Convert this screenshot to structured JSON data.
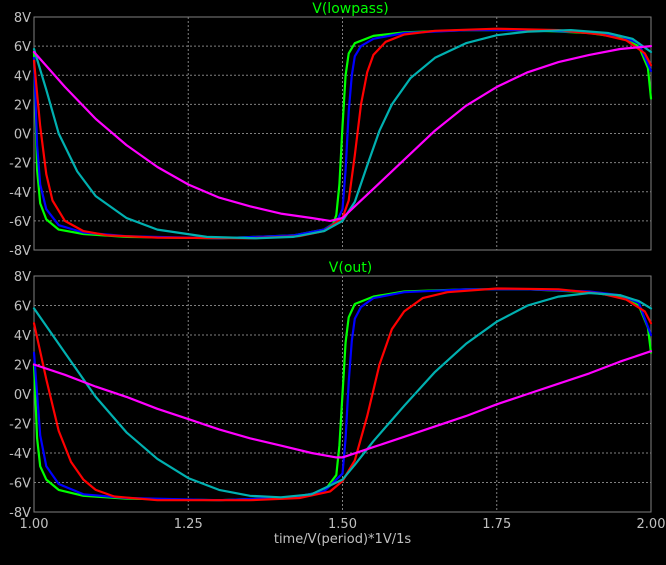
{
  "chart_data": [
    {
      "type": "line",
      "title": "V(lowpass)",
      "title_color": "#00ff00",
      "ylim": [
        -8,
        8
      ],
      "yticks": [
        {
          "value": 8,
          "label": "8V"
        },
        {
          "value": 6,
          "label": "6V"
        },
        {
          "value": 4,
          "label": "4V"
        },
        {
          "value": 2,
          "label": "2V"
        },
        {
          "value": 0,
          "label": "0V"
        },
        {
          "value": -2,
          "label": "-2V"
        },
        {
          "value": -4,
          "label": "-4V"
        },
        {
          "value": -6,
          "label": "-6V"
        },
        {
          "value": -8,
          "label": "-8V"
        }
      ],
      "xlim": [
        1.0,
        2.0
      ],
      "grid": true,
      "series": [
        {
          "color": "#00ff00",
          "points": [
            [
              1.0,
              5.6
            ],
            [
              1.005,
              -2.5
            ],
            [
              1.01,
              -4.8
            ],
            [
              1.02,
              -5.9
            ],
            [
              1.04,
              -6.6
            ],
            [
              1.08,
              -6.9
            ],
            [
              1.15,
              -7.1
            ],
            [
              1.3,
              -7.2
            ],
            [
              1.42,
              -7.0
            ],
            [
              1.47,
              -6.6
            ],
            [
              1.485,
              -6.2
            ],
            [
              1.49,
              -5.6
            ],
            [
              1.495,
              -3.5
            ],
            [
              1.5,
              0.5
            ],
            [
              1.505,
              4.0
            ],
            [
              1.51,
              5.5
            ],
            [
              1.52,
              6.2
            ],
            [
              1.55,
              6.7
            ],
            [
              1.6,
              6.95
            ],
            [
              1.7,
              7.1
            ],
            [
              1.8,
              7.1
            ],
            [
              1.9,
              6.9
            ],
            [
              1.95,
              6.6
            ],
            [
              1.98,
              6.0
            ],
            [
              1.995,
              4.5
            ],
            [
              2.0,
              2.4
            ]
          ]
        },
        {
          "color": "#0000ff",
          "points": [
            [
              1.0,
              5.2
            ],
            [
              1.005,
              -0.8
            ],
            [
              1.01,
              -3.5
            ],
            [
              1.02,
              -5.2
            ],
            [
              1.04,
              -6.3
            ],
            [
              1.08,
              -6.8
            ],
            [
              1.15,
              -7.05
            ],
            [
              1.3,
              -7.2
            ],
            [
              1.42,
              -7.0
            ],
            [
              1.47,
              -6.6
            ],
            [
              1.49,
              -6.1
            ],
            [
              1.5,
              -5.2
            ],
            [
              1.505,
              -2.5
            ],
            [
              1.51,
              1.5
            ],
            [
              1.515,
              4.0
            ],
            [
              1.52,
              5.3
            ],
            [
              1.53,
              6.0
            ],
            [
              1.55,
              6.5
            ],
            [
              1.6,
              6.9
            ],
            [
              1.7,
              7.1
            ],
            [
              1.8,
              7.1
            ],
            [
              1.9,
              6.95
            ],
            [
              1.95,
              6.7
            ],
            [
              1.98,
              6.2
            ],
            [
              2.0,
              4.3
            ]
          ]
        },
        {
          "color": "#ff0000",
          "points": [
            [
              1.0,
              5.0
            ],
            [
              1.01,
              0.5
            ],
            [
              1.02,
              -2.8
            ],
            [
              1.03,
              -4.6
            ],
            [
              1.05,
              -6.0
            ],
            [
              1.08,
              -6.7
            ],
            [
              1.12,
              -7.0
            ],
            [
              1.2,
              -7.15
            ],
            [
              1.35,
              -7.2
            ],
            [
              1.43,
              -7.05
            ],
            [
              1.47,
              -6.7
            ],
            [
              1.5,
              -5.8
            ],
            [
              1.51,
              -4.6
            ],
            [
              1.52,
              -1.5
            ],
            [
              1.53,
              2.0
            ],
            [
              1.54,
              4.2
            ],
            [
              1.55,
              5.4
            ],
            [
              1.57,
              6.3
            ],
            [
              1.6,
              6.8
            ],
            [
              1.65,
              7.05
            ],
            [
              1.75,
              7.2
            ],
            [
              1.85,
              7.1
            ],
            [
              1.92,
              6.8
            ],
            [
              1.96,
              6.4
            ],
            [
              1.99,
              5.5
            ],
            [
              2.0,
              4.7
            ]
          ]
        },
        {
          "color": "#00b0b0",
          "points": [
            [
              1.0,
              5.8
            ],
            [
              1.02,
              3.0
            ],
            [
              1.04,
              0.0
            ],
            [
              1.07,
              -2.6
            ],
            [
              1.1,
              -4.3
            ],
            [
              1.15,
              -5.8
            ],
            [
              1.2,
              -6.6
            ],
            [
              1.28,
              -7.1
            ],
            [
              1.36,
              -7.2
            ],
            [
              1.42,
              -7.1
            ],
            [
              1.47,
              -6.7
            ],
            [
              1.5,
              -6.0
            ],
            [
              1.52,
              -4.7
            ],
            [
              1.54,
              -2.2
            ],
            [
              1.56,
              0.2
            ],
            [
              1.58,
              2.0
            ],
            [
              1.61,
              3.8
            ],
            [
              1.65,
              5.2
            ],
            [
              1.7,
              6.2
            ],
            [
              1.75,
              6.75
            ],
            [
              1.8,
              7.0
            ],
            [
              1.87,
              7.1
            ],
            [
              1.93,
              6.9
            ],
            [
              1.97,
              6.5
            ],
            [
              2.0,
              5.6
            ]
          ]
        },
        {
          "color": "#ff00ff",
          "points": [
            [
              1.0,
              5.6
            ],
            [
              1.05,
              3.2
            ],
            [
              1.1,
              1.0
            ],
            [
              1.15,
              -0.8
            ],
            [
              1.2,
              -2.3
            ],
            [
              1.25,
              -3.5
            ],
            [
              1.3,
              -4.4
            ],
            [
              1.35,
              -5.0
            ],
            [
              1.4,
              -5.5
            ],
            [
              1.45,
              -5.8
            ],
            [
              1.48,
              -6.0
            ],
            [
              1.5,
              -5.8
            ],
            [
              1.52,
              -5.0
            ],
            [
              1.55,
              -3.8
            ],
            [
              1.6,
              -1.8
            ],
            [
              1.65,
              0.2
            ],
            [
              1.7,
              1.9
            ],
            [
              1.75,
              3.2
            ],
            [
              1.8,
              4.2
            ],
            [
              1.85,
              4.9
            ],
            [
              1.9,
              5.4
            ],
            [
              1.95,
              5.8
            ],
            [
              2.0,
              6.0
            ]
          ]
        }
      ]
    },
    {
      "type": "line",
      "title": "V(out)",
      "title_color": "#00ff00",
      "ylim": [
        -8,
        8
      ],
      "yticks": [
        {
          "value": 8,
          "label": "8V"
        },
        {
          "value": 6,
          "label": "6V"
        },
        {
          "value": 4,
          "label": "4V"
        },
        {
          "value": 2,
          "label": "2V"
        },
        {
          "value": 0,
          "label": "0V"
        },
        {
          "value": -2,
          "label": "-2V"
        },
        {
          "value": -4,
          "label": "-4V"
        },
        {
          "value": -6,
          "label": "-6V"
        },
        {
          "value": -8,
          "label": "-8V"
        }
      ],
      "xlim": [
        1.0,
        2.0
      ],
      "xticks": [
        {
          "value": 1.0,
          "label": "1.00"
        },
        {
          "value": 1.25,
          "label": "1.25"
        },
        {
          "value": 1.5,
          "label": "1.50"
        },
        {
          "value": 1.75,
          "label": "1.75"
        },
        {
          "value": 2.0,
          "label": "2.00"
        }
      ],
      "xlabel": "time/V(period)*1V/1s",
      "grid": true,
      "series": [
        {
          "color": "#00ff00",
          "points": [
            [
              1.0,
              2.0
            ],
            [
              1.005,
              -3.0
            ],
            [
              1.01,
              -4.9
            ],
            [
              1.02,
              -5.8
            ],
            [
              1.04,
              -6.5
            ],
            [
              1.08,
              -6.9
            ],
            [
              1.15,
              -7.1
            ],
            [
              1.3,
              -7.2
            ],
            [
              1.42,
              -7.0
            ],
            [
              1.47,
              -6.6
            ],
            [
              1.49,
              -5.5
            ],
            [
              1.495,
              -3.5
            ],
            [
              1.5,
              0.0
            ],
            [
              1.505,
              3.5
            ],
            [
              1.51,
              5.2
            ],
            [
              1.52,
              6.1
            ],
            [
              1.55,
              6.6
            ],
            [
              1.6,
              6.95
            ],
            [
              1.7,
              7.1
            ],
            [
              1.8,
              7.1
            ],
            [
              1.9,
              6.9
            ],
            [
              1.95,
              6.6
            ],
            [
              1.98,
              6.0
            ],
            [
              1.995,
              4.5
            ],
            [
              2.0,
              2.8
            ]
          ]
        },
        {
          "color": "#0000ff",
          "points": [
            [
              1.0,
              2.8
            ],
            [
              1.01,
              -2.8
            ],
            [
              1.02,
              -4.9
            ],
            [
              1.04,
              -6.1
            ],
            [
              1.08,
              -6.8
            ],
            [
              1.15,
              -7.05
            ],
            [
              1.3,
              -7.2
            ],
            [
              1.42,
              -7.0
            ],
            [
              1.47,
              -6.6
            ],
            [
              1.5,
              -5.4
            ],
            [
              1.505,
              -3.0
            ],
            [
              1.51,
              0.8
            ],
            [
              1.515,
              3.6
            ],
            [
              1.52,
              5.1
            ],
            [
              1.53,
              5.9
            ],
            [
              1.55,
              6.5
            ],
            [
              1.6,
              6.9
            ],
            [
              1.7,
              7.1
            ],
            [
              1.8,
              7.1
            ],
            [
              1.9,
              6.95
            ],
            [
              1.95,
              6.7
            ],
            [
              1.98,
              6.2
            ],
            [
              2.0,
              4.0
            ]
          ]
        },
        {
          "color": "#ff0000",
          "points": [
            [
              1.0,
              4.8
            ],
            [
              1.02,
              1.0
            ],
            [
              1.04,
              -2.5
            ],
            [
              1.06,
              -4.6
            ],
            [
              1.08,
              -5.8
            ],
            [
              1.1,
              -6.5
            ],
            [
              1.13,
              -6.95
            ],
            [
              1.2,
              -7.2
            ],
            [
              1.35,
              -7.2
            ],
            [
              1.43,
              -7.05
            ],
            [
              1.48,
              -6.6
            ],
            [
              1.5,
              -5.9
            ],
            [
              1.52,
              -4.5
            ],
            [
              1.54,
              -1.5
            ],
            [
              1.56,
              2.0
            ],
            [
              1.58,
              4.4
            ],
            [
              1.6,
              5.6
            ],
            [
              1.63,
              6.5
            ],
            [
              1.67,
              6.9
            ],
            [
              1.75,
              7.15
            ],
            [
              1.85,
              7.1
            ],
            [
              1.92,
              6.8
            ],
            [
              1.96,
              6.4
            ],
            [
              1.99,
              5.6
            ],
            [
              2.0,
              4.8
            ]
          ]
        },
        {
          "color": "#00b0b0",
          "points": [
            [
              1.0,
              5.8
            ],
            [
              1.05,
              2.8
            ],
            [
              1.1,
              -0.2
            ],
            [
              1.15,
              -2.6
            ],
            [
              1.2,
              -4.4
            ],
            [
              1.25,
              -5.7
            ],
            [
              1.3,
              -6.5
            ],
            [
              1.35,
              -6.9
            ],
            [
              1.4,
              -7.0
            ],
            [
              1.45,
              -6.8
            ],
            [
              1.5,
              -5.8
            ],
            [
              1.52,
              -4.8
            ],
            [
              1.55,
              -3.2
            ],
            [
              1.6,
              -0.8
            ],
            [
              1.65,
              1.5
            ],
            [
              1.7,
              3.4
            ],
            [
              1.75,
              4.9
            ],
            [
              1.8,
              6.0
            ],
            [
              1.85,
              6.6
            ],
            [
              1.9,
              6.85
            ],
            [
              1.95,
              6.7
            ],
            [
              1.98,
              6.3
            ],
            [
              2.0,
              5.8
            ]
          ]
        },
        {
          "color": "#ff00ff",
          "points": [
            [
              1.0,
              2.0
            ],
            [
              1.05,
              1.3
            ],
            [
              1.1,
              0.5
            ],
            [
              1.15,
              -0.2
            ],
            [
              1.2,
              -1.0
            ],
            [
              1.25,
              -1.7
            ],
            [
              1.3,
              -2.4
            ],
            [
              1.35,
              -3.0
            ],
            [
              1.4,
              -3.5
            ],
            [
              1.45,
              -4.0
            ],
            [
              1.49,
              -4.3
            ],
            [
              1.5,
              -4.3
            ],
            [
              1.55,
              -3.6
            ],
            [
              1.6,
              -2.9
            ],
            [
              1.65,
              -2.2
            ],
            [
              1.7,
              -1.5
            ],
            [
              1.75,
              -0.7
            ],
            [
              1.8,
              0.0
            ],
            [
              1.85,
              0.7
            ],
            [
              1.9,
              1.4
            ],
            [
              1.95,
              2.2
            ],
            [
              2.0,
              2.9
            ]
          ]
        }
      ]
    }
  ]
}
